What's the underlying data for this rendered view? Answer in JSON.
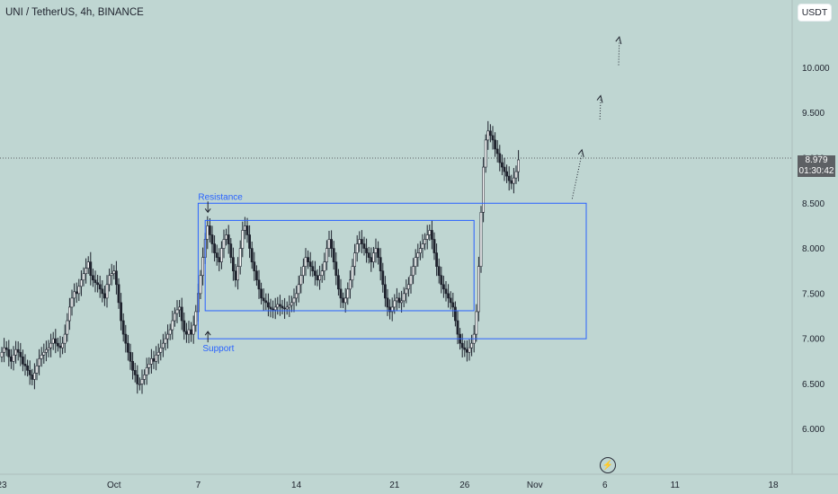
{
  "header": {
    "title": "UNI / TetherUS, 4h, BINANCE",
    "unit_button": "USDT"
  },
  "colors": {
    "background": "#bfd6d2",
    "candle": "#1e222d",
    "annotation": "#2962ff",
    "price_label_bg": "#5d6064"
  },
  "chart_data": {
    "type": "candlestick",
    "symbol": "UNI/USDT",
    "timeframe": "4h",
    "exchange": "BINANCE",
    "y_ticks": [
      6.0,
      6.5,
      7.0,
      7.5,
      8.0,
      8.5,
      9.0,
      9.5,
      10.0
    ],
    "y_tick_labels": [
      "6.000",
      "6.500",
      "7.000",
      "7.500",
      "8.000",
      "8.500",
      "9.000",
      "9.500",
      "10.000"
    ],
    "ylim": [
      5.5,
      10.75
    ],
    "x_ticks": [
      {
        "label": "23",
        "index": 0
      },
      {
        "label": "Oct",
        "index": 48
      },
      {
        "label": "7",
        "index": 84
      },
      {
        "label": "14",
        "index": 126
      },
      {
        "label": "21",
        "index": 168
      },
      {
        "label": "26",
        "index": 198
      },
      {
        "label": "Nov",
        "index": 228
      },
      {
        "label": "6",
        "index": 258
      },
      {
        "label": "11",
        "index": 288
      },
      {
        "label": "18",
        "index": 330
      }
    ],
    "closes": [
      6.85,
      6.9,
      6.88,
      6.8,
      6.75,
      6.82,
      6.88,
      6.85,
      6.8,
      6.72,
      6.7,
      6.65,
      6.6,
      6.55,
      6.62,
      6.7,
      6.78,
      6.82,
      6.85,
      6.88,
      6.9,
      6.95,
      7.0,
      6.95,
      6.92,
      6.9,
      6.95,
      7.05,
      7.2,
      7.35,
      7.45,
      7.52,
      7.5,
      7.58,
      7.65,
      7.72,
      7.78,
      7.85,
      7.7,
      7.65,
      7.62,
      7.6,
      7.55,
      7.5,
      7.45,
      7.6,
      7.7,
      7.72,
      7.75,
      7.6,
      7.4,
      7.2,
      7.05,
      6.95,
      6.85,
      6.75,
      6.65,
      6.6,
      6.5,
      6.5,
      6.55,
      6.6,
      6.68,
      6.72,
      6.78,
      6.75,
      6.82,
      6.85,
      6.9,
      6.95,
      7.0,
      7.05,
      7.1,
      7.2,
      7.28,
      7.32,
      7.35,
      7.2,
      7.08,
      7.05,
      7.1,
      7.05,
      7.15,
      7.3,
      7.5,
      7.7,
      7.9,
      8.1,
      8.25,
      8.15,
      8.05,
      7.95,
      7.9,
      7.85,
      8.0,
      8.1,
      8.15,
      8.05,
      7.9,
      7.75,
      7.65,
      7.8,
      8.0,
      8.2,
      8.25,
      8.15,
      8.0,
      7.85,
      7.75,
      7.65,
      7.55,
      7.45,
      7.42,
      7.4,
      7.35,
      7.33,
      7.32,
      7.35,
      7.38,
      7.36,
      7.34,
      7.33,
      7.35,
      7.37,
      7.4,
      7.45,
      7.5,
      7.6,
      7.7,
      7.8,
      7.9,
      7.85,
      7.8,
      7.75,
      7.7,
      7.65,
      7.7,
      7.75,
      7.85,
      8.0,
      8.1,
      8.0,
      7.85,
      7.7,
      7.55,
      7.45,
      7.4,
      7.45,
      7.55,
      7.65,
      7.8,
      7.95,
      8.05,
      8.1,
      8.05,
      8.0,
      7.95,
      7.9,
      7.85,
      7.95,
      8.0,
      7.9,
      7.75,
      7.6,
      7.45,
      7.35,
      7.3,
      7.35,
      7.42,
      7.45,
      7.4,
      7.42,
      7.5,
      7.55,
      7.6,
      7.7,
      7.8,
      7.9,
      7.95,
      8.0,
      8.05,
      8.1,
      8.15,
      8.2,
      8.1,
      7.95,
      7.8,
      7.7,
      7.6,
      7.55,
      7.5,
      7.45,
      7.4,
      7.35,
      7.2,
      7.05,
      6.95,
      6.9,
      6.88,
      6.85,
      6.9,
      6.95,
      7.05,
      7.3,
      7.8,
      8.4,
      8.9,
      9.2,
      9.3,
      9.25,
      9.2,
      9.1,
      9.05,
      8.95,
      8.9,
      8.85,
      8.8,
      8.75,
      8.72,
      8.78,
      8.85,
      8.98
    ],
    "annotations": {
      "range_box": {
        "y_low": 7.0,
        "y_high": 8.5,
        "index_start": 84,
        "index_end": 250
      },
      "inner_box": {
        "y_low": 7.31,
        "y_high": 8.31,
        "index_start": 87,
        "index_end": 202
      },
      "resistance_label": "Resistance",
      "support_label": "Support",
      "projection": [
        [
          244,
          8.55
        ],
        [
          252,
          9.25
        ],
        [
          260,
          9.85
        ],
        [
          268,
          10.5
        ]
      ]
    },
    "last_price": "8.979",
    "countdown": "01:30:42",
    "grid": false,
    "crosshair_price": 9.0
  }
}
